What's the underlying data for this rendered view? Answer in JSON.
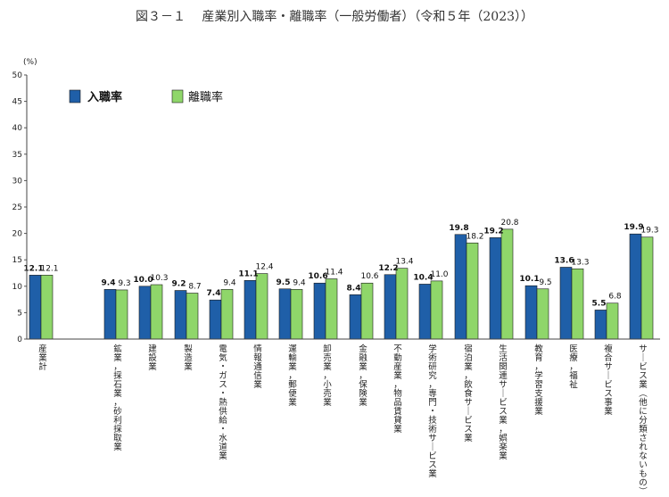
{
  "chart_data": {
    "type": "bar",
    "title": "図３－１　 産業別入職率・離職率（一般労働者）（令和５年（2023））",
    "ylabel": "(%)",
    "ylim": [
      0,
      50
    ],
    "yticks": [
      0,
      5,
      10,
      15,
      20,
      25,
      30,
      35,
      40,
      45,
      50
    ],
    "categories": [
      "産業計",
      "鉱業，採石業，砂利採取業",
      "建設業",
      "製造業",
      "電気・ガス・熱供給・水道業",
      "情報通信業",
      "運輸業，郵便業",
      "卸売業，小売業",
      "金融業，保険業",
      "不動産業，物品賃貸業",
      "学術研究，専門・技術サービス業",
      "宿泊業，飲食サービス業",
      "生活関連サービス業，娯楽業",
      "教育，学習支援業",
      "医療，福祉",
      "複合サービス事業",
      "サービス業（他に分類されないもの）"
    ],
    "series": [
      {
        "name": "入職率",
        "color": "#1f5fa8",
        "values": [
          12.1,
          9.4,
          10.0,
          9.2,
          7.4,
          11.1,
          9.5,
          10.6,
          8.4,
          12.2,
          10.4,
          19.8,
          19.2,
          10.1,
          13.6,
          5.5,
          19.9
        ]
      },
      {
        "name": "離職率",
        "color": "#8fd66a",
        "values": [
          12.1,
          9.3,
          10.3,
          8.7,
          9.4,
          12.4,
          9.4,
          11.4,
          10.6,
          13.4,
          11.0,
          18.2,
          20.8,
          9.5,
          13.3,
          6.8,
          19.3
        ]
      }
    ],
    "value_labels": [
      [
        "12.1",
        "9.4",
        "10.0",
        "9.2",
        "7.4",
        "11.1",
        "9.5",
        "10.6",
        "8.4",
        "12.2",
        "10.4",
        "19.8",
        "19.2",
        "10.1",
        "13.6",
        "5.5",
        "19.9"
      ],
      [
        "12.1",
        "9.3",
        "10.3",
        "8.7",
        "9.4",
        "12.4",
        "9.4",
        "11.4",
        "10.6",
        "13.4",
        "11.0",
        "18.2",
        "20.8",
        "9.5",
        "13.3",
        "6.8",
        "19.3"
      ]
    ],
    "legend_position": "top-left"
  }
}
